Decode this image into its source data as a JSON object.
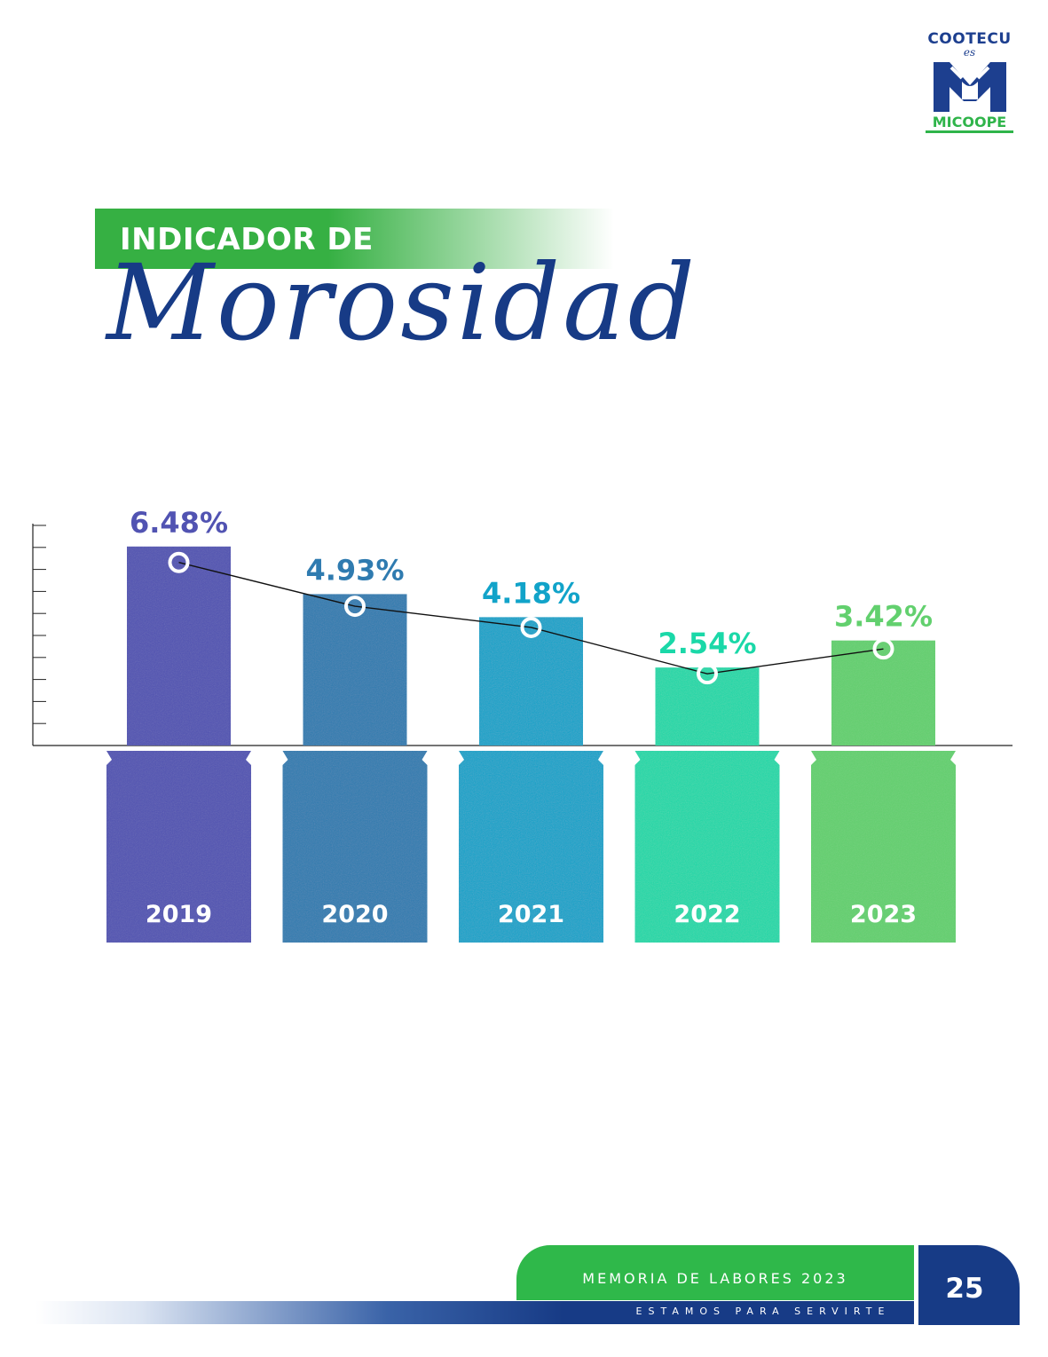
{
  "logo": {
    "top_text": "COOTECU",
    "mid_text": "es",
    "bottom_text": "MICOOPE"
  },
  "title": {
    "line1": "INDICADOR DE",
    "line2": "Morosidad"
  },
  "colors": {
    "navy": "#173b86",
    "green": "#36b043",
    "series": [
      "#5153b2",
      "#2f7bb0",
      "#11a3c9",
      "#1ad8a8",
      "#62d06e"
    ]
  },
  "chart_data": {
    "type": "bar",
    "title": "",
    "xlabel": "",
    "ylabel": "",
    "categories": [
      "2019",
      "2020",
      "2021",
      "2022",
      "2023"
    ],
    "series": [
      {
        "values": [
          6.48,
          4.93,
          4.18,
          2.54,
          3.42
        ]
      }
    ],
    "value_labels": [
      "6.48%",
      "4.93%",
      "4.18%",
      "2.54%",
      "3.42%"
    ],
    "overlay": "line with circle markers",
    "grid": false,
    "legend": "none"
  },
  "footer": {
    "memoria": "MEMORIA DE LABORES 2023",
    "slogan": "ESTAMOS PARA SERVIRTE",
    "page_number": "25"
  }
}
